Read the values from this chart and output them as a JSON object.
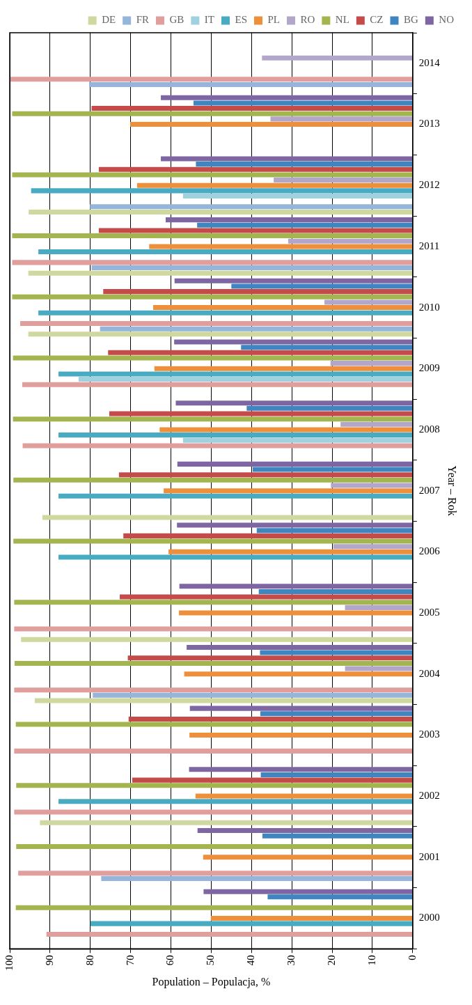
{
  "chart_data": {
    "type": "bar",
    "orientation": "horizontal",
    "xlabel": "Population – Populacja, %",
    "ylabel": "Year – Rok",
    "categories": [
      "2014",
      "2013",
      "2012",
      "2011",
      "2010",
      "2009",
      "2008",
      "2007",
      "2006",
      "2005",
      "2004",
      "2003",
      "2002",
      "2001",
      "2000"
    ],
    "xlim": [
      100,
      0
    ],
    "xticks": [
      100,
      90,
      80,
      70,
      60,
      50,
      40,
      30,
      20,
      10,
      0
    ],
    "grid": "x",
    "legend": "top right",
    "series": [
      {
        "name": "DE",
        "color": "#cfd89f",
        "values": [
          null,
          null,
          95.3,
          95.4,
          95.4,
          null,
          null,
          91.9,
          null,
          97.2,
          93.8,
          null,
          92.5,
          null,
          null
        ]
      },
      {
        "name": "FR",
        "color": "#95b5da",
        "values": [
          80.3,
          null,
          80.1,
          79.7,
          77.6,
          null,
          null,
          null,
          null,
          null,
          79.4,
          null,
          null,
          77.3,
          null
        ]
      },
      {
        "name": "GB",
        "color": "#e09f9c",
        "values": [
          99.9,
          null,
          null,
          99.4,
          97.4,
          96.9,
          96.8,
          null,
          null,
          98.9,
          98.9,
          98.9,
          98.9,
          97.9,
          90.9
        ]
      },
      {
        "name": "IT",
        "color": "#9fd2de",
        "values": [
          null,
          null,
          57.0,
          null,
          null,
          82.9,
          57.0,
          null,
          null,
          null,
          null,
          null,
          null,
          null,
          null
        ]
      },
      {
        "name": "ES",
        "color": "#48abc1",
        "values": [
          null,
          null,
          94.7,
          92.9,
          92.9,
          87.9,
          87.9,
          87.9,
          87.9,
          null,
          null,
          null,
          87.9,
          null,
          80.0
        ]
      },
      {
        "name": "PL",
        "color": "#ee8f3b",
        "values": [
          null,
          70.1,
          68.4,
          65.4,
          64.4,
          64.1,
          62.8,
          61.8,
          60.6,
          58.0,
          56.7,
          55.4,
          53.9,
          52.0,
          50.1
        ]
      },
      {
        "name": "RO",
        "color": "#b2a6cb",
        "values": [
          37.4,
          35.3,
          34.5,
          30.9,
          21.9,
          20.4,
          17.9,
          20.3,
          19.7,
          16.8,
          16.8,
          null,
          null,
          null,
          null
        ]
      },
      {
        "name": "NL",
        "color": "#a3b54f",
        "values": [
          null,
          99.4,
          99.4,
          99.4,
          99.4,
          99.2,
          99.2,
          99.1,
          99.1,
          98.9,
          98.8,
          98.5,
          98.4,
          98.4,
          98.5
        ]
      },
      {
        "name": "CZ",
        "color": "#c54b4b",
        "values": [
          null,
          79.7,
          77.9,
          77.9,
          76.8,
          75.6,
          75.3,
          72.9,
          71.8,
          72.7,
          70.7,
          70.5,
          69.6,
          null,
          null
        ]
      },
      {
        "name": "BG",
        "color": "#3f85bf",
        "values": [
          null,
          54.4,
          53.8,
          53.5,
          45.0,
          42.6,
          41.2,
          39.7,
          38.7,
          38.2,
          37.9,
          37.8,
          37.7,
          37.3,
          36.0
        ]
      },
      {
        "name": "NO",
        "color": "#7e66a3",
        "values": [
          null,
          62.5,
          62.5,
          61.3,
          59.1,
          59.2,
          58.8,
          58.4,
          58.5,
          57.9,
          56.1,
          55.3,
          55.5,
          53.4,
          51.9
        ]
      }
    ]
  }
}
